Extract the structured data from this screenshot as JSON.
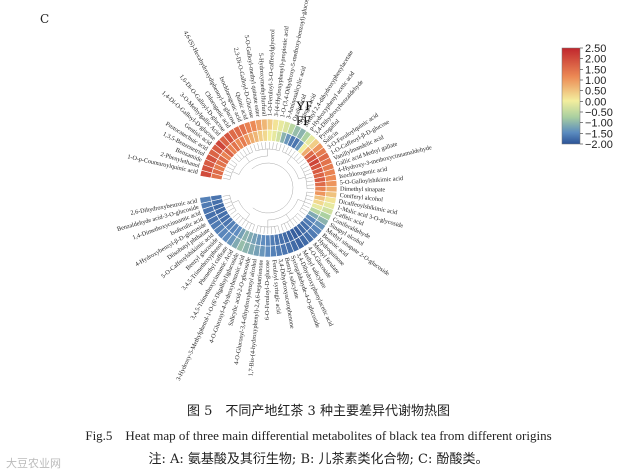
{
  "panel_letter": "C",
  "caption": {
    "cn": "图 5　不同产地红茶 3 种主要差异代谢物热图",
    "en": "Fig.5　Heat map of three main differential metabolites of black tea from different origins",
    "note": "注: A: 氨基酸及其衍生物; B: 儿茶素类化合物; C: 酚酸类。"
  },
  "watermark": "大豆农业网",
  "chart_data": {
    "type": "heatmap",
    "layout": "circular",
    "ring_labels": [
      "YF",
      "FF"
    ],
    "colorbar": {
      "min": -2.0,
      "max": 2.5,
      "ticks": [
        2.5,
        2.0,
        1.5,
        1.0,
        0.5,
        0.0,
        -0.5,
        -1.0,
        -1.5,
        -2.0
      ],
      "tick_labels": [
        "2.50",
        "2.00",
        "1.50",
        "1.00",
        "0.50",
        "0.00",
        "−0.50",
        "−1.00",
        "−1.50",
        "−2.00"
      ]
    },
    "colors": {
      "high": "#c0262d",
      "mid": "#f3ee9e",
      "low": "#2c5396",
      "dendrogram": "#aaaaaa"
    },
    "metabolites": [
      {
        "name": "1-O-p-Coumaroylquinic acid",
        "YF": 2.0,
        "FF": 1.5
      },
      {
        "name": "2-Phenylethanol",
        "YF": 1.9,
        "FF": 1.6
      },
      {
        "name": "Benzamide",
        "YF": 1.8,
        "FF": 1.4
      },
      {
        "name": "1,3,5-Benzenetriol",
        "YF": 1.9,
        "FF": 1.5
      },
      {
        "name": "Protocatechuic acid",
        "YF": 1.7,
        "FF": 1.6
      },
      {
        "name": "Gentisic acid",
        "YF": 1.8,
        "FF": 1.3
      },
      {
        "name": "1,4-Di-O-Galloyl-D-glucose",
        "YF": 2.1,
        "FF": 1.7
      },
      {
        "name": "3-O-Methylgallic Acid",
        "YF": 1.7,
        "FF": 1.3
      },
      {
        "name": "1,6-Di-O-Galloyl-D-glucose",
        "YF": 1.9,
        "FF": 1.5
      },
      {
        "name": "Chlorogenic acid",
        "YF": 1.6,
        "FF": 1.2
      },
      {
        "name": "4,6-(S)-Hexahydroxydiphenoyl-D-glucose",
        "YF": 1.6,
        "FF": 1.4
      },
      {
        "name": "Isochlorogenic acid",
        "YF": 1.5,
        "FF": 1.1
      },
      {
        "name": "Quinic acid",
        "YF": 1.3,
        "FF": 0.9
      },
      {
        "name": "2,3-Di-O-Galloyl-D-Glucose",
        "YF": 1.2,
        "FF": 0.8
      },
      {
        "name": "5-O-Galloyl-methyl quinate ester",
        "YF": 1.0,
        "FF": 0.6
      },
      {
        "name": "5-Hydroxymethylfurfural",
        "YF": 0.8,
        "FF": 0.5
      },
      {
        "name": "1-O-Feruloyl-3-O-caffeoylglycerol",
        "YF": 0.6,
        "FF": 0.3
      },
      {
        "name": "3-(4-Hydroxyphenyl)-propionic acid",
        "YF": 0.4,
        "FF": 0.2
      },
      {
        "name": "1-O-(3,4-Dihydroxy-5-methoxy-benzoyl)-glucoside",
        "YF": 0.2,
        "FF": 0.0
      },
      {
        "name": "3-Aminosalicylic acid",
        "YF": 0.1,
        "FF": -0.6
      },
      {
        "name": "Oxalic acid",
        "YF": -0.2,
        "FF": -0.9
      },
      {
        "name": "Syringic acid",
        "YF": -0.5,
        "FF": -1.3
      },
      {
        "name": "Methyl 2,4-dihydroxyphenylacetate",
        "YF": -0.6,
        "FF": -1.4
      },
      {
        "name": "p-Hydroxyphenyl acetic acid",
        "YF": -0.3,
        "FF": -0.9
      },
      {
        "name": "3,4-Dihydroxybenzaldehyde",
        "YF": 0.2,
        "FF": 0.3
      },
      {
        "name": "Pyrogallol",
        "YF": 0.6,
        "FF": 0.9
      },
      {
        "name": "Salicin",
        "YF": 1.1,
        "FF": 1.6
      },
      {
        "name": "3-O-Feruloylquinic acid",
        "YF": 1.4,
        "FF": 1.9
      },
      {
        "name": "1-O-Caffeoyl-β-D-glucose",
        "YF": 1.6,
        "FF": 2.1
      },
      {
        "name": "Vanillylmandelic acid",
        "YF": 1.5,
        "FF": 1.9
      },
      {
        "name": "Gallic acid Methyl gallate",
        "YF": 1.4,
        "FF": 1.8
      },
      {
        "name": "4-Hydroxy-3-methoxycinnamaldehyde",
        "YF": 1.3,
        "FF": 1.7
      },
      {
        "name": "Isochlorogenic acid",
        "YF": 1.2,
        "FF": 1.8
      },
      {
        "name": "5-O-Galloylshikimic acid",
        "YF": 1.1,
        "FF": 1.6
      },
      {
        "name": "Dimethyl sinapate",
        "YF": 0.9,
        "FF": 1.3
      },
      {
        "name": "Coniferyl alcohol",
        "YF": 0.7,
        "FF": 1.1
      },
      {
        "name": "Dicaffeoylshikimic acid",
        "YF": 0.4,
        "FF": 0.7
      },
      {
        "name": "1-Malic acid 3-O-glycoside",
        "YF": 0.2,
        "FF": 0.5
      },
      {
        "name": "Caffeic acid",
        "YF": 0.0,
        "FF": 0.2
      },
      {
        "name": "Coniferaldehyde",
        "YF": -0.3,
        "FF": -0.2
      },
      {
        "name": "Sinapyl alcohol",
        "YF": -0.6,
        "FF": -0.7
      },
      {
        "name": "Methyl sinapate 2-O-glucoside",
        "YF": -0.9,
        "FF": -1.1
      },
      {
        "name": "Benzoic acid",
        "YF": -1.1,
        "FF": -1.3
      },
      {
        "name": "Hydroquinone",
        "YF": -1.3,
        "FF": -1.5
      },
      {
        "name": "Methyl ferulate",
        "YF": -1.5,
        "FF": -1.6
      },
      {
        "name": "4-O-Glucoside",
        "YF": -1.6,
        "FF": -1.8
      },
      {
        "name": "Methyl salicylate",
        "YF": -1.7,
        "FF": -1.8
      },
      {
        "name": "3,4-Dihydroxyphenylacetic acid",
        "YF": -1.6,
        "FF": -1.7
      },
      {
        "name": "Syringaldehyde-4-O-glucoside",
        "YF": -1.5,
        "FF": -1.6
      },
      {
        "name": "Benzyl salicylate",
        "YF": -1.4,
        "FF": -1.5
      },
      {
        "name": "3,4-Dihydroxyacetophenone",
        "YF": -1.3,
        "FF": -1.4
      },
      {
        "name": "Feruloyl syringic acid",
        "YF": -1.2,
        "FF": -1.3
      },
      {
        "name": "6-O-Feruloyl-D-glucose",
        "YF": -1.0,
        "FF": -1.1
      },
      {
        "name": "1,7-Bis-(4-hydroxyphenyl)-2,4,6-heptatrienone",
        "YF": -0.9,
        "FF": -1.0
      },
      {
        "name": "4-O-Glucosyl-3,4-dihydroxybenzyl alcohol",
        "YF": -0.8,
        "FF": -0.9
      },
      {
        "name": "Salicylic acid-2-O-glucoside",
        "YF": -0.7,
        "FF": -0.8
      },
      {
        "name": "4-O-Glucosyl-4-hydroxybenzoic acid",
        "YF": -0.6,
        "FF": -0.7
      },
      {
        "name": "3-Hydroxy-5-Methylphenol-1-O-(6'-Digalloyl)glucoside",
        "YF": -0.5,
        "FF": -0.6
      },
      {
        "name": "3,4,5-Trimethoxycinnamic Acid",
        "YF": -0.7,
        "FF": -0.8
      },
      {
        "name": "Phenethyl caffeate",
        "YF": -0.9,
        "FF": -1.0
      },
      {
        "name": "3,4,5-Trimethoxyphenol",
        "YF": -1.0,
        "FF": -1.1
      },
      {
        "name": "Benzyl glucoside",
        "YF": -1.1,
        "FF": -1.2
      },
      {
        "name": "5-O-Caffeoylshikimic acid",
        "YF": -1.2,
        "FF": -1.4
      },
      {
        "name": "Diisobutyl phthalate",
        "YF": -1.3,
        "FF": -1.5
      },
      {
        "name": "4-Hydroxybenzyl-β-D-glucoside",
        "YF": -1.4,
        "FF": -1.5
      },
      {
        "name": "Isoferulic acid",
        "YF": -1.5,
        "FF": -1.6
      },
      {
        "name": "1,4-Dimethoxycinnamic acid",
        "YF": -1.4,
        "FF": -1.6
      },
      {
        "name": "Benzaldehyde acid-3-O-glucoside",
        "YF": -1.3,
        "FF": -1.5
      },
      {
        "name": "2,6-Dihydroxybenzoic acid",
        "YF": -1.2,
        "FF": -1.4
      }
    ]
  }
}
